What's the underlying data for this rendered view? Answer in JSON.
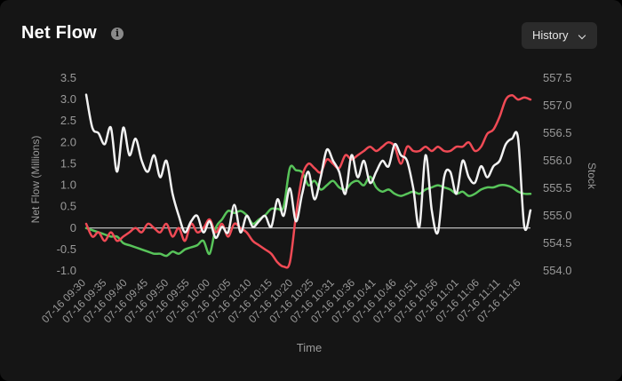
{
  "header": {
    "title": "Net Flow",
    "info_icon": "info-icon",
    "history_label": "History"
  },
  "colors": {
    "background": "#151515",
    "stock_line": "#f2f2f2",
    "red_line": "#f04a55",
    "green_line": "#58c45a",
    "axis_text": "#9a9a9a"
  },
  "chart_data": {
    "type": "line",
    "title": "Net Flow",
    "xlabel": "Time",
    "ylabel": "Net Flow (Millions)",
    "y2label": "Stock",
    "ylim": [
      -1.0,
      3.5
    ],
    "y2lim": [
      554.0,
      557.5
    ],
    "y_ticks": [
      "3.5",
      "3.0",
      "2.5",
      "2.0",
      "1.5",
      "1.0",
      "0.5",
      "0",
      "-0.5",
      "-1.0"
    ],
    "y2_ticks": [
      "557.5",
      "557.0",
      "556.5",
      "556.0",
      "555.5",
      "555.0",
      "554.5",
      "554.0"
    ],
    "x_tick_labels": [
      "07-16 09:30",
      "07-16 09:35",
      "07-16 09:40",
      "07-16 09:45",
      "07-16 09:50",
      "07-16 09:55",
      "07-16 10:00",
      "07-16 10:05",
      "07-16 10:10",
      "07-16 10:15",
      "07-16 10:20",
      "07-16 10:25",
      "07-16 10:31",
      "07-16 10:36",
      "07-16 10:41",
      "07-16 10:46",
      "07-16 10:51",
      "07-16 10:56",
      "07-16 11:01",
      "07-16 11:06",
      "07-16 11:11",
      "07-16 11:16"
    ],
    "grid": false,
    "legend": "none",
    "series": [
      {
        "axis": "right",
        "color": "#f2f2f2",
        "values": [
          557.2,
          556.6,
          556.5,
          556.3,
          556.6,
          555.8,
          556.6,
          556.1,
          556.4,
          556.0,
          555.8,
          556.1,
          555.7,
          556.0,
          555.4,
          555.0,
          554.7,
          554.9,
          555.0,
          554.7,
          554.9,
          554.6,
          554.8,
          554.7,
          555.2,
          554.7,
          555.0,
          554.8,
          554.9,
          555.0,
          554.8,
          555.3,
          555.0,
          555.5,
          554.9,
          555.4,
          555.8,
          555.3,
          555.7,
          556.2,
          556.0,
          555.8,
          555.4,
          556.1,
          555.7,
          556.0,
          555.6,
          555.8,
          556.0,
          555.9,
          556.3,
          556.1,
          556.0,
          555.5,
          554.8,
          556.1,
          555.1,
          554.7,
          555.7,
          555.8,
          555.4,
          556.0,
          555.7,
          555.6,
          555.9,
          555.7,
          555.9,
          556.0,
          556.3,
          556.4,
          556.4,
          554.8,
          555.1
        ]
      },
      {
        "axis": "left",
        "color": "#f04a55",
        "values": [
          0.1,
          -0.2,
          -0.1,
          -0.3,
          -0.1,
          -0.3,
          -0.2,
          -0.1,
          0.0,
          -0.1,
          0.1,
          0.0,
          -0.1,
          0.1,
          -0.2,
          0.0,
          -0.3,
          0.1,
          -0.1,
          0.0,
          0.2,
          -0.1,
          0.1,
          -0.2,
          0.1,
          0.0,
          -0.1,
          -0.3,
          -0.4,
          -0.5,
          -0.6,
          -0.8,
          -0.9,
          -0.8,
          0.3,
          1.2,
          1.5,
          1.4,
          1.3,
          1.6,
          1.5,
          1.4,
          1.7,
          1.6,
          1.7,
          1.8,
          1.9,
          1.8,
          1.9,
          2.0,
          1.9,
          1.5,
          1.9,
          1.8,
          1.8,
          1.9,
          1.8,
          1.9,
          1.8,
          1.8,
          1.9,
          1.9,
          2.0,
          1.8,
          1.9,
          2.2,
          2.3,
          2.6,
          3.0,
          3.1,
          3.0,
          3.05,
          3.0
        ]
      },
      {
        "axis": "left",
        "color": "#58c45a",
        "values": [
          0.0,
          -0.05,
          -0.1,
          -0.15,
          -0.2,
          -0.2,
          -0.35,
          -0.4,
          -0.45,
          -0.5,
          -0.55,
          -0.6,
          -0.6,
          -0.65,
          -0.55,
          -0.6,
          -0.5,
          -0.45,
          -0.4,
          -0.3,
          -0.6,
          0.0,
          0.2,
          0.4,
          0.35,
          0.4,
          0.3,
          0.1,
          0.2,
          0.3,
          0.45,
          0.45,
          0.5,
          1.4,
          1.35,
          1.3,
          1.0,
          1.1,
          0.9,
          1.0,
          1.1,
          0.95,
          0.9,
          1.05,
          1.1,
          1.0,
          1.2,
          0.95,
          0.85,
          0.9,
          0.8,
          0.75,
          0.8,
          0.85,
          0.8,
          0.9,
          0.95,
          1.0,
          0.95,
          0.9,
          0.8,
          0.85,
          0.75,
          0.8,
          0.9,
          0.95,
          0.95,
          1.0,
          1.0,
          0.95,
          0.85,
          0.8,
          0.8
        ]
      }
    ]
  }
}
